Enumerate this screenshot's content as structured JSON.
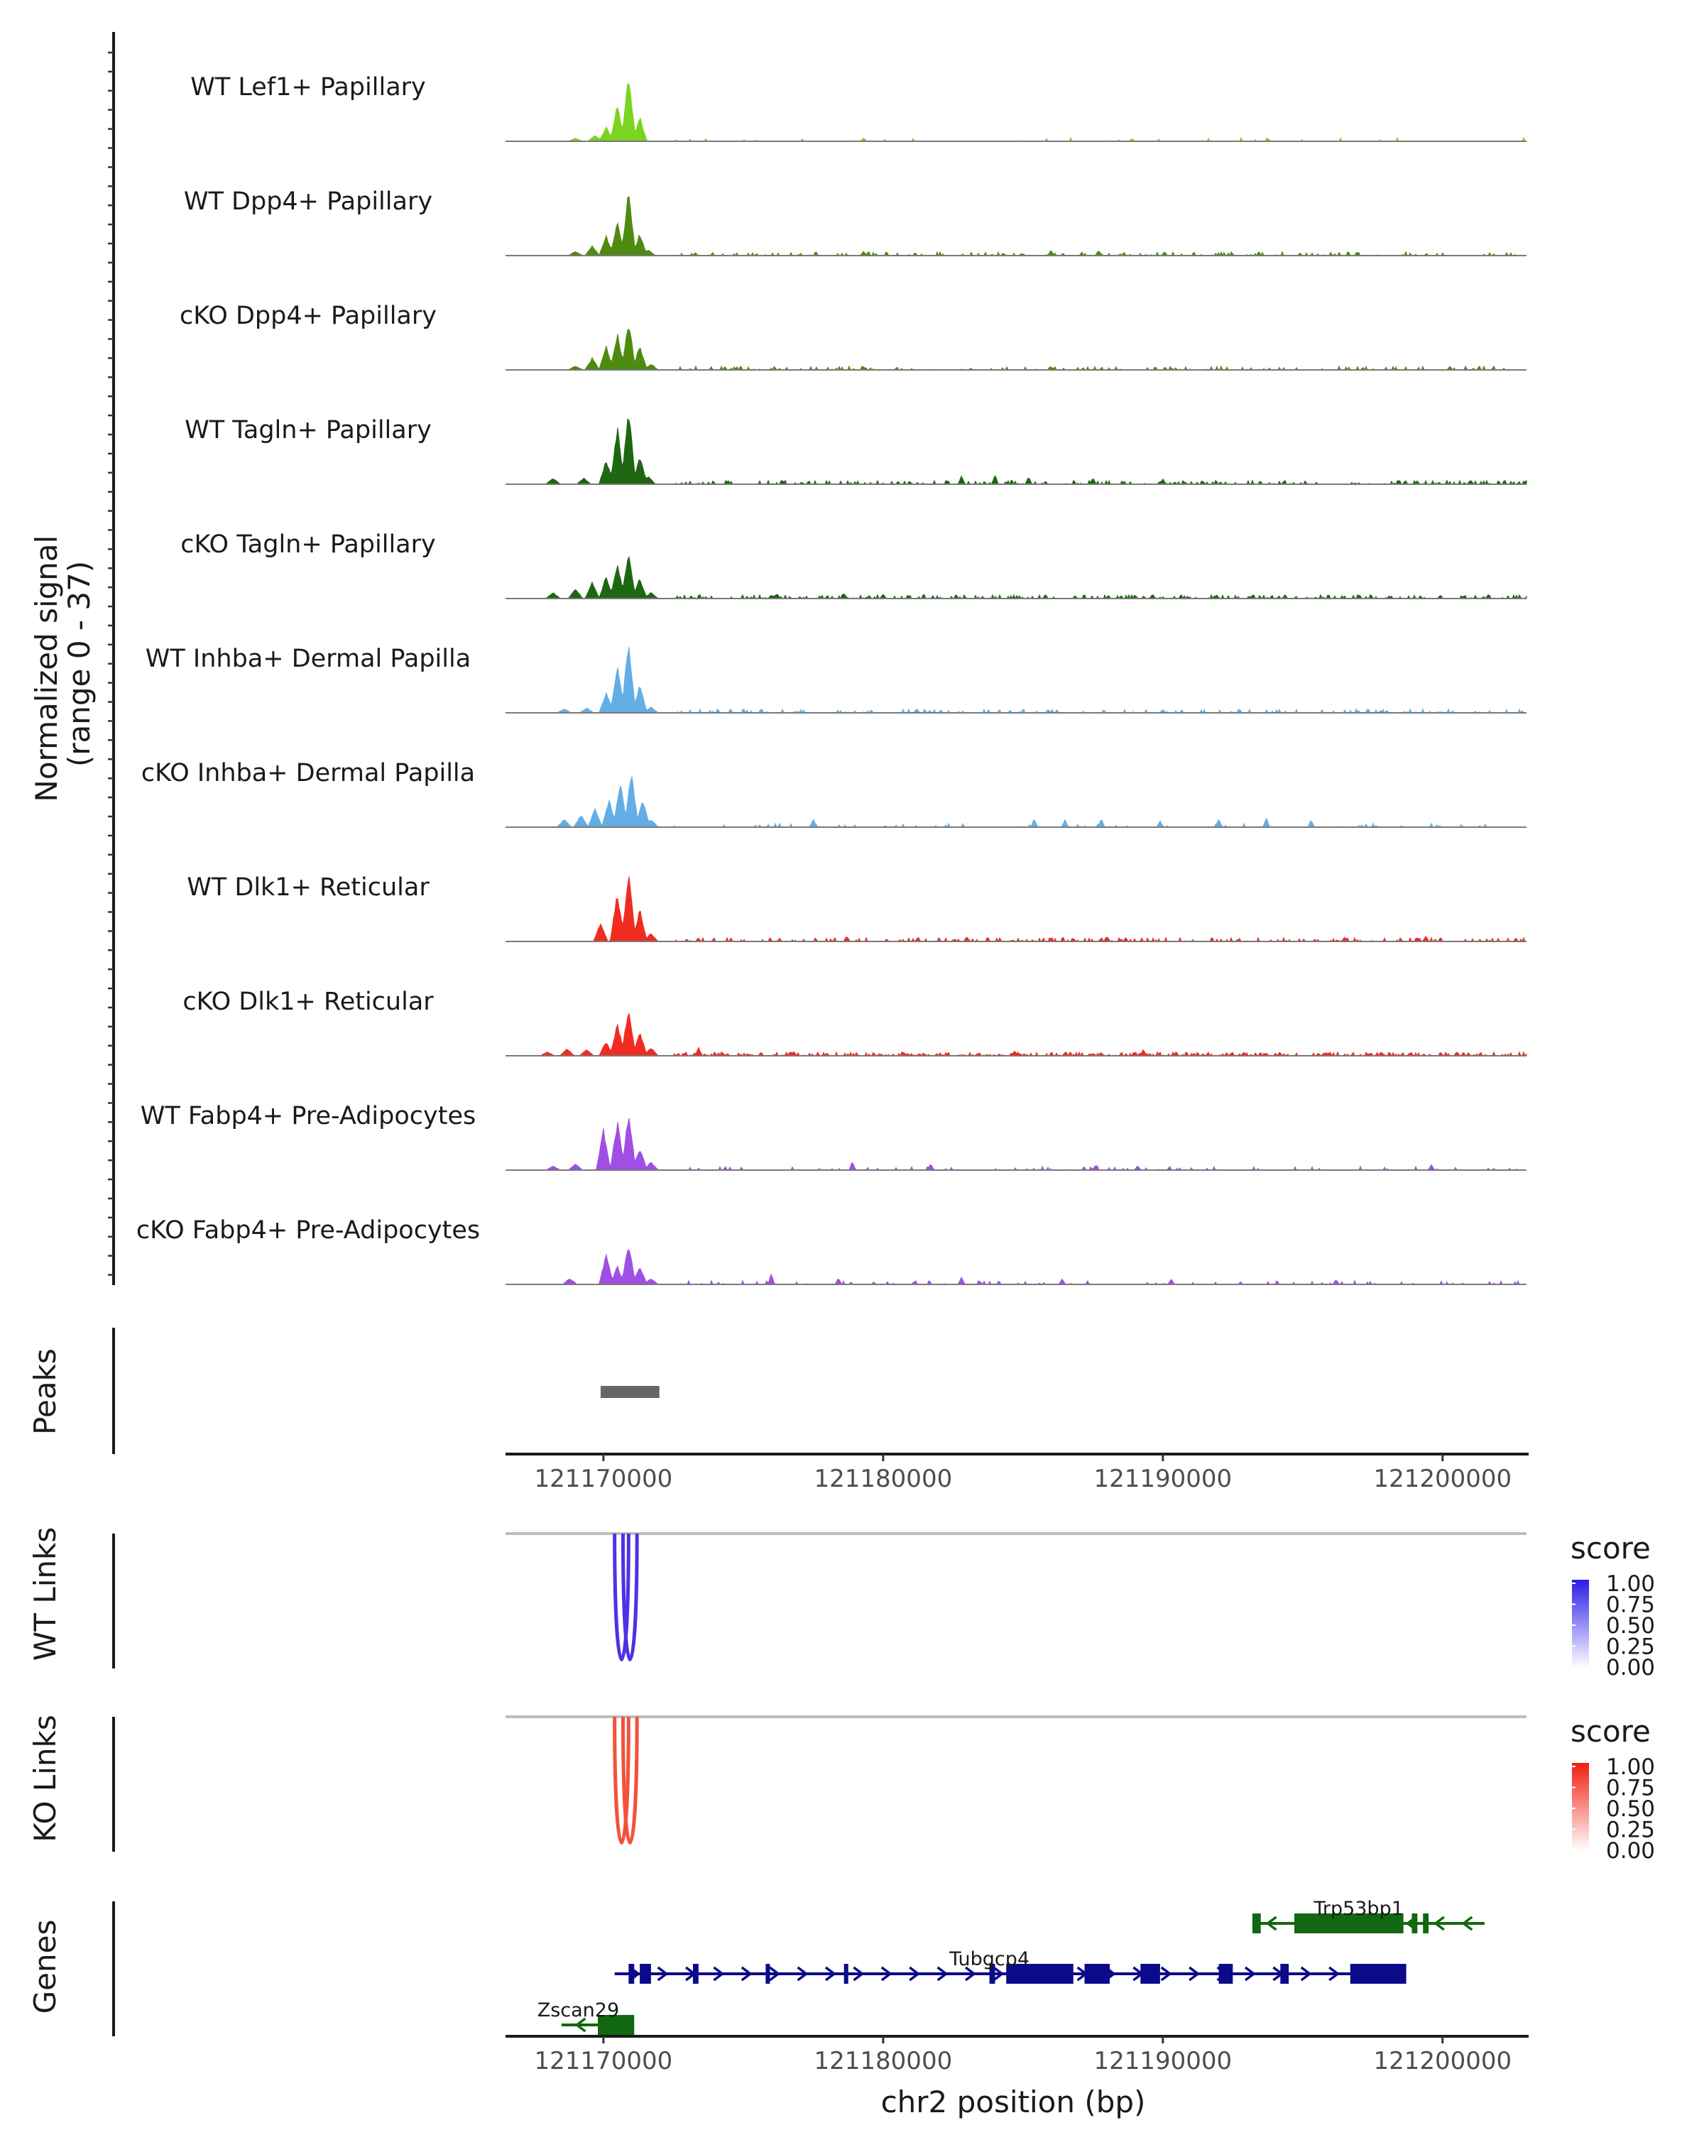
{
  "chart_data": {
    "type": "area",
    "title": "",
    "region": {
      "chrom": "chr2",
      "start": 121166500,
      "end": 121203000
    },
    "coverage": {
      "ylabel": "Normalized signal\n(range 0 - 37)",
      "ylabel_line1": "Normalized signal",
      "ylabel_line2": "(range 0 - 37)",
      "ylim": [
        0,
        37
      ],
      "series": [
        {
          "name": "WT Lef1+ Papillary",
          "color": "#7cd320",
          "peak": 33,
          "sparse": 0.04,
          "cluster": [
            [
              121169000,
              1.5
            ],
            [
              121169700,
              3
            ],
            [
              121170100,
              7
            ],
            [
              121170500,
              18
            ],
            [
              121170900,
              33
            ],
            [
              121171300,
              12
            ]
          ],
          "noise": [
            [
              121179300,
              1.5
            ],
            [
              121188900,
              1.2
            ]
          ]
        },
        {
          "name": "WT Dpp4+ Papillary",
          "color": "#4f8a10",
          "peak": 32,
          "sparse": 0.25,
          "cluster": [
            [
              121169000,
              2
            ],
            [
              121169600,
              5
            ],
            [
              121170100,
              10
            ],
            [
              121170500,
              17
            ],
            [
              121170900,
              32
            ],
            [
              121171300,
              11
            ],
            [
              121171600,
              3
            ]
          ],
          "noise": [
            [
              121179300,
              2
            ],
            [
              121186000,
              2.5
            ],
            [
              121187700,
              2.5
            ]
          ]
        },
        {
          "name": "cKO Dpp4+ Papillary",
          "color": "#4f8a10",
          "peak": 24,
          "sparse": 0.2,
          "cluster": [
            [
              121169000,
              2
            ],
            [
              121169600,
              6
            ],
            [
              121170100,
              12
            ],
            [
              121170500,
              18
            ],
            [
              121170900,
              24
            ],
            [
              121171300,
              12
            ],
            [
              121171700,
              3
            ]
          ],
          "noise": [
            [
              121179300,
              1.5
            ],
            [
              121186000,
              1.5
            ]
          ]
        },
        {
          "name": "WT Tagln+ Papillary",
          "color": "#1e6612",
          "peak": 37,
          "sparse": 0.3,
          "cluster": [
            [
              121168200,
              3
            ],
            [
              121169300,
              3
            ],
            [
              121170100,
              12
            ],
            [
              121170500,
              28
            ],
            [
              121170900,
              37
            ],
            [
              121171300,
              14
            ],
            [
              121171600,
              4
            ]
          ],
          "noise": [
            [
              121182800,
              4
            ],
            [
              121184000,
              4.5
            ],
            [
              121185200,
              3.5
            ],
            [
              121187500,
              3
            ],
            [
              121190000,
              2.5
            ],
            [
              121201000,
              2
            ]
          ]
        },
        {
          "name": "cKO Tagln+ Papillary",
          "color": "#1e6612",
          "peak": 23,
          "sparse": 0.35,
          "cluster": [
            [
              121168200,
              3
            ],
            [
              121169000,
              5
            ],
            [
              121169600,
              8
            ],
            [
              121170100,
              11
            ],
            [
              121170500,
              17
            ],
            [
              121170900,
              23
            ],
            [
              121171300,
              10
            ],
            [
              121171700,
              3
            ]
          ],
          "noise": [
            [
              121176200,
              2
            ],
            [
              121178600,
              2.5
            ],
            [
              121180000,
              2
            ]
          ]
        },
        {
          "name": "WT Inhba+ Dermal Papilla",
          "color": "#63aee6",
          "peak": 36,
          "sparse": 0.2,
          "cluster": [
            [
              121168600,
              2
            ],
            [
              121169400,
              2.5
            ],
            [
              121170100,
              10
            ],
            [
              121170500,
              24
            ],
            [
              121170900,
              36
            ],
            [
              121171300,
              14
            ],
            [
              121171700,
              3
            ]
          ],
          "noise": [
            [
              121181200,
              2
            ],
            [
              121185900,
              1.5
            ],
            [
              121190000,
              1.5
            ],
            [
              121197800,
              1.2
            ]
          ]
        },
        {
          "name": "cKO Inhba+ Dermal Papilla",
          "color": "#63aee6",
          "peak": 27,
          "sparse": 0.06,
          "cluster": [
            [
              121168600,
              4
            ],
            [
              121169200,
              6
            ],
            [
              121169700,
              9
            ],
            [
              121170200,
              14
            ],
            [
              121170600,
              22
            ],
            [
              121171000,
              27
            ],
            [
              121171400,
              14
            ],
            [
              121171700,
              4
            ]
          ],
          "noise": [
            [
              121177500,
              4
            ],
            [
              121185400,
              4
            ],
            [
              121186500,
              3.5
            ],
            [
              121187800,
              4
            ],
            [
              121189900,
              3
            ],
            [
              121192000,
              4
            ],
            [
              121193700,
              4.5
            ],
            [
              121195300,
              3.5
            ]
          ]
        },
        {
          "name": "WT Dlk1+ Reticular",
          "color": "#f02c22",
          "peak": 35,
          "sparse": 0.3,
          "cluster": [
            [
              121169900,
              9
            ],
            [
              121170500,
              24
            ],
            [
              121170900,
              35
            ],
            [
              121171300,
              16
            ],
            [
              121171700,
              4
            ]
          ],
          "noise": [
            [
              121178700,
              2.5
            ],
            [
              121183000,
              2
            ],
            [
              121188000,
              2.5
            ],
            [
              121196500,
              2
            ],
            [
              121199400,
              2.5
            ]
          ]
        },
        {
          "name": "cKO Dlk1+ Reticular",
          "color": "#f02c22",
          "peak": 24,
          "sparse": 0.5,
          "cluster": [
            [
              121168000,
              2
            ],
            [
              121168700,
              3.5
            ],
            [
              121169400,
              3
            ],
            [
              121170100,
              7
            ],
            [
              121170500,
              16
            ],
            [
              121170900,
              24
            ],
            [
              121171300,
              12
            ],
            [
              121171700,
              4
            ]
          ],
          "noise": [
            [
              121173400,
              4
            ],
            [
              121176800,
              2
            ],
            [
              121184700,
              2.5
            ],
            [
              121189300,
              3
            ]
          ]
        },
        {
          "name": "WT Fabp4+ Pre-Adipocytes",
          "color": "#a04fe4",
          "peak": 28,
          "sparse": 0.12,
          "cluster": [
            [
              121168200,
              2
            ],
            [
              121169000,
              3
            ],
            [
              121170000,
              20
            ],
            [
              121170500,
              24
            ],
            [
              121170900,
              28
            ],
            [
              121171300,
              11
            ],
            [
              121171700,
              4
            ]
          ],
          "noise": [
            [
              121178900,
              4
            ],
            [
              121181700,
              3
            ],
            [
              121187600,
              2.5
            ],
            [
              121189100,
              2
            ],
            [
              121199600,
              2.5
            ]
          ]
        },
        {
          "name": "cKO Fabp4+ Pre-Adipocytes",
          "color": "#a04fe4",
          "peak": 20,
          "sparse": 0.12,
          "cluster": [
            [
              121168800,
              3
            ],
            [
              121170100,
              15
            ],
            [
              121170500,
              9
            ],
            [
              121170900,
              20
            ],
            [
              121171300,
              9
            ],
            [
              121171700,
              3
            ]
          ],
          "noise": [
            [
              121176000,
              5
            ],
            [
              121178400,
              3
            ],
            [
              121182800,
              3.5
            ],
            [
              121186400,
              2.5
            ],
            [
              121190300,
              2.5
            ],
            [
              121196200,
              2
            ]
          ]
        }
      ]
    },
    "peaks": {
      "label": "Peaks",
      "ranges": [
        [
          121169900,
          121172000
        ]
      ],
      "color": "#666666"
    },
    "x_axis_mid": {
      "ticks": [
        121170000,
        121180000,
        121190000,
        121200000
      ],
      "tick_labels": [
        "121170000",
        "121180000",
        "121190000",
        "121200000"
      ]
    },
    "links": [
      {
        "label": "WT Links",
        "color": "#5031e6",
        "arcs": [
          {
            "start": 121170400,
            "end": 121170900,
            "score": 1.0
          },
          {
            "start": 121170700,
            "end": 121171200,
            "score": 1.0
          }
        ],
        "legend": {
          "title": "score",
          "ticks": [
            "1.00",
            "0.75",
            "0.50",
            "0.25",
            "0.00"
          ],
          "high": "#2b1ce6",
          "low": "#ffffff"
        }
      },
      {
        "label": "KO Links",
        "color": "#f3523a",
        "arcs": [
          {
            "start": 121170400,
            "end": 121170900,
            "score": 1.0
          },
          {
            "start": 121170700,
            "end": 121171200,
            "score": 1.0
          }
        ],
        "legend": {
          "title": "score",
          "ticks": [
            "1.00",
            "0.75",
            "0.50",
            "0.25",
            "0.00"
          ],
          "high": "#f01e12",
          "low": "#ffffff"
        }
      }
    ],
    "genes": {
      "label": "Genes",
      "items": [
        {
          "name": "Trp53bp1",
          "strand": "-",
          "color": "#116811",
          "row": 0,
          "start": 121193200,
          "end": 121201500,
          "exons": [
            [
              121193200,
              121193500
            ],
            [
              121194700,
              121198600
            ],
            [
              121198900,
              121199100
            ],
            [
              121199300,
              121199500
            ]
          ]
        },
        {
          "name": "Tubgcp4",
          "strand": "+",
          "color": "#0a0a8a",
          "row": 1,
          "start": 121170400,
          "end": 121198700,
          "exons": [
            [
              121170900,
              121171100
            ],
            [
              121171300,
              121171700
            ],
            [
              121173200,
              121173400
            ],
            [
              121175800,
              121175950
            ],
            [
              121178600,
              121178700
            ],
            [
              121183800,
              121184000
            ],
            [
              121184400,
              121186800
            ],
            [
              121187200,
              121188100
            ],
            [
              121189200,
              121189900
            ],
            [
              121192000,
              121192500
            ],
            [
              121194200,
              121194500
            ],
            [
              121196700,
              121198700
            ]
          ]
        },
        {
          "name": "Zscan29",
          "strand": "-",
          "color": "#116811",
          "row": 2,
          "start": 121168500,
          "end": 121171100,
          "exons": [
            [
              121169800,
              121171100
            ]
          ]
        }
      ]
    },
    "xlabel": "chr2 position (bp)",
    "x_axis_bottom": {
      "ticks": [
        121170000,
        121180000,
        121190000,
        121200000
      ],
      "tick_labels": [
        "121170000",
        "121180000",
        "121190000",
        "121200000"
      ]
    }
  }
}
